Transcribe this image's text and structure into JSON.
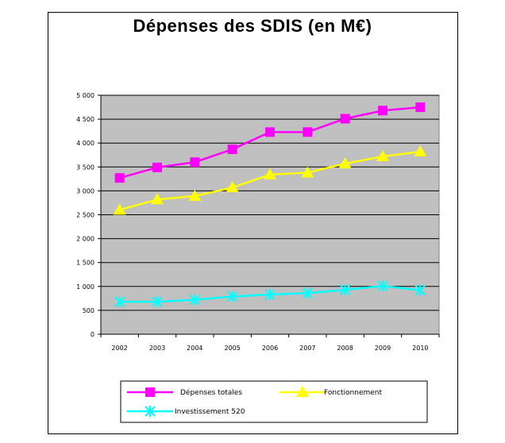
{
  "chart_data": {
    "type": "line",
    "title": "Dépenses des SDIS (en M€)",
    "xlabel": "",
    "ylabel": "",
    "categories": [
      "2002",
      "2003",
      "2004",
      "2005",
      "2006",
      "2007",
      "2008",
      "2009",
      "2010"
    ],
    "ylim": [
      0,
      5000
    ],
    "yticks": [
      0,
      500,
      1000,
      1500,
      2000,
      2500,
      3000,
      3500,
      4000,
      4500,
      5000
    ],
    "ytick_labels": [
      "0",
      "500",
      "1 000",
      "1 500",
      "2 000",
      "2 500",
      "3 000",
      "3 500",
      "4 000",
      "4 500",
      "5 000"
    ],
    "grid": true,
    "plot_background": "#c0c0c0",
    "legend_position": "bottom",
    "series": [
      {
        "name": "Dépenses totales",
        "color": "#ff00ff",
        "marker": "square",
        "values": [
          3270,
          3490,
          3600,
          3870,
          4230,
          4230,
          4510,
          4680,
          4750
        ]
      },
      {
        "name": "Fonctionnement",
        "color": "#ffff00",
        "marker": "triangle",
        "values": [
          2600,
          2820,
          2890,
          3070,
          3340,
          3380,
          3570,
          3720,
          3820
        ]
      },
      {
        "name": "Investissement 520",
        "color": "#00ffff",
        "marker": "x",
        "values": [
          680,
          680,
          720,
          790,
          830,
          860,
          930,
          1010,
          920
        ]
      }
    ]
  }
}
